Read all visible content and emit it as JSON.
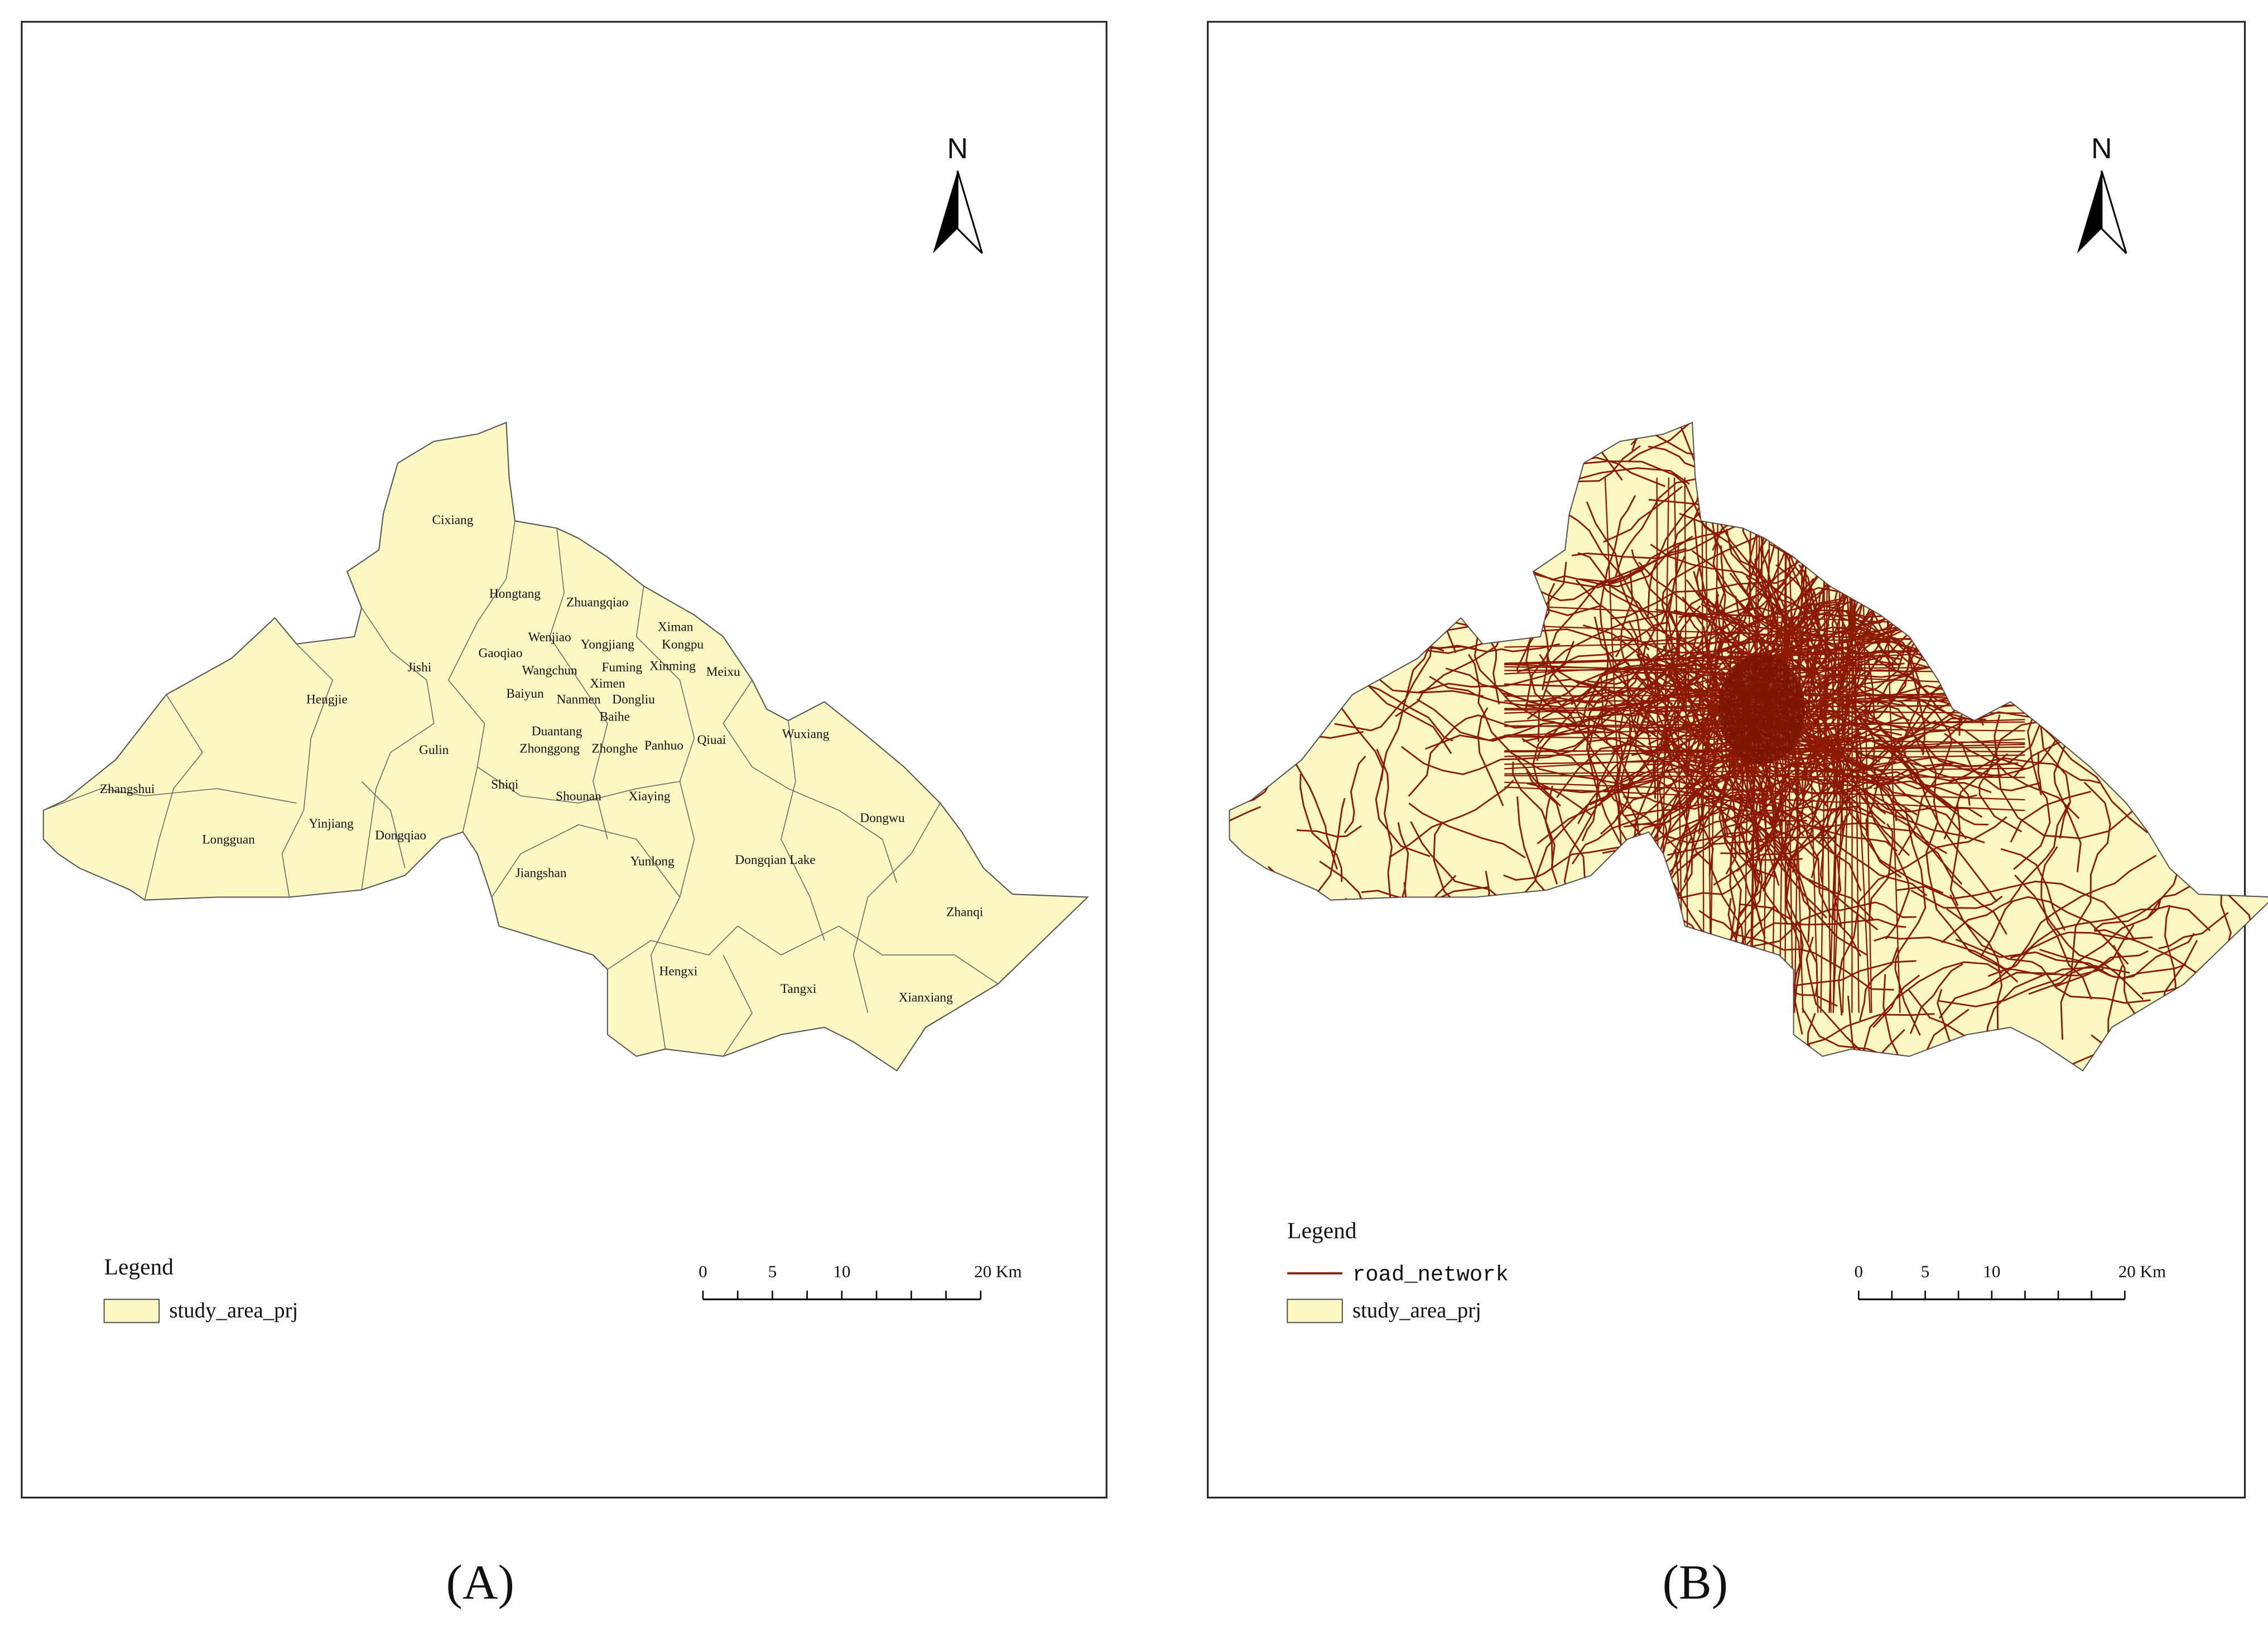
{
  "panels": [
    {
      "caption": "(A)",
      "north": "N",
      "places": [
        "Cixiang",
        "Hongtang",
        "Zhuangqiao",
        "Ximan",
        "Wenjiao",
        "Yongjiang",
        "Kongpu",
        "Gaoqiao",
        "Jishi",
        "Wangchun",
        "Fuming",
        "Xinming",
        "Meixu",
        "Ximen",
        "Hengjie",
        "Baiyun",
        "Nanmen",
        "Dongliu",
        "Baihe",
        "Qiuai",
        "Wuxiang",
        "Gulin",
        "Duantang",
        "Zhonggong",
        "Zhonghe",
        "Panhuo",
        "Shiqi",
        "Shounan",
        "Xiaying",
        "Zhangshui",
        "Dongwu",
        "Yinjiang",
        "Dongqiao",
        "Longguan",
        "Jiangshan",
        "Yunlong",
        "Dongqian Lake",
        "Zhanqi",
        "Hengxi",
        "Tangxi",
        "Xianxiang"
      ],
      "legend": {
        "title": "Legend",
        "items": [
          "study_area_prj"
        ]
      },
      "scale_bar": {
        "labels": [
          "0",
          "5",
          "10",
          "20 Km"
        ]
      }
    },
    {
      "caption": "(B)",
      "north": "N",
      "legend": {
        "title": "Legend",
        "items": [
          "road_network",
          "study_area_prj"
        ]
      },
      "scale_bar": {
        "labels": [
          "0",
          "5",
          "10",
          "20 Km"
        ]
      }
    }
  ]
}
